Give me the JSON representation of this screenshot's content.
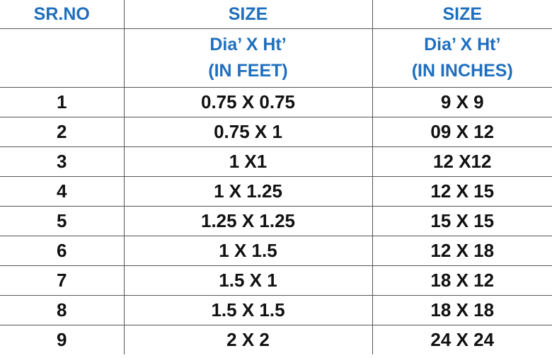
{
  "header": {
    "sr_no": "SR.NO",
    "size_feet": "SIZE",
    "size_inches": "SIZE",
    "sub_sr_no": "",
    "sub_feet_line1": "Dia’ X Ht’",
    "sub_feet_line2": "(IN FEET)",
    "sub_inches_line1": "Dia’ X Ht’",
    "sub_inches_line2": "(IN INCHES)"
  },
  "rows": [
    {
      "sr": "1",
      "feet": "0.75 X 0.75",
      "inches": "9 X 9"
    },
    {
      "sr": "2",
      "feet": "0.75 X 1",
      "inches": "09 X 12"
    },
    {
      "sr": "3",
      "feet": "1 X1",
      "inches": "12 X12"
    },
    {
      "sr": "4",
      "feet": "1 X 1.25",
      "inches": "12 X 15"
    },
    {
      "sr": "5",
      "feet": "1.25 X 1.25",
      "inches": "15 X 15"
    },
    {
      "sr": "6",
      "feet": "1 X 1.5",
      "inches": "12 X 18"
    },
    {
      "sr": "7",
      "feet": "1.5 X 1",
      "inches": "18 X 12"
    },
    {
      "sr": "8",
      "feet": "1.5 X 1.5",
      "inches": "18 X 18"
    },
    {
      "sr": "9",
      "feet": "2 X 2",
      "inches": "24 X 24"
    }
  ],
  "colors": {
    "header_text": "#1f6fbf",
    "body_text": "#111111",
    "border": "#555555"
  }
}
